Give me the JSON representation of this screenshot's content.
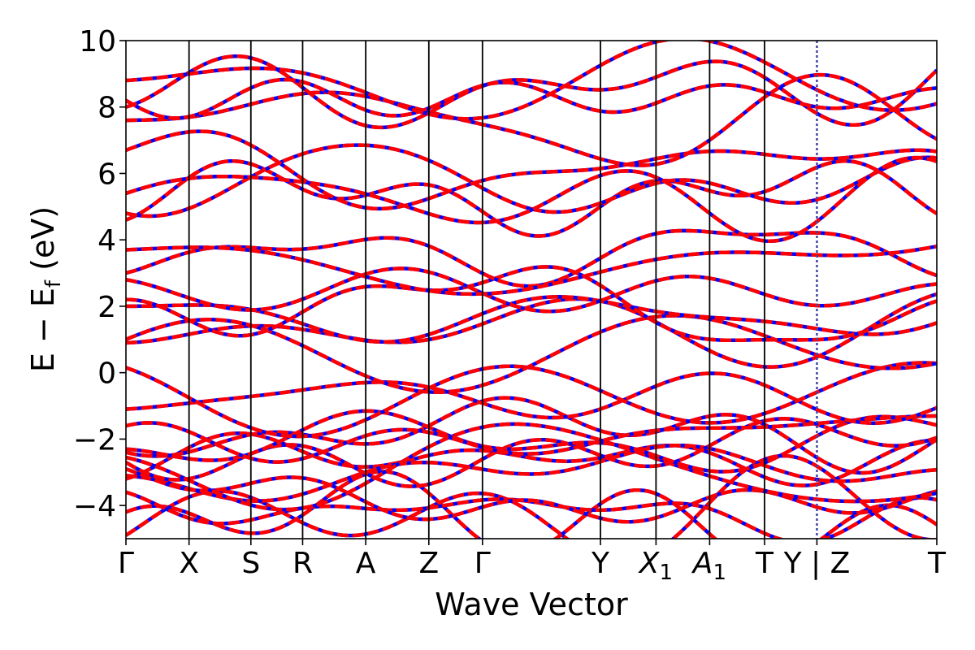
{
  "chart_data": {
    "type": "line",
    "xlabel": "Wave Vector",
    "ylabel": "E − E",
    "ylabel_subscript": "f",
    "ylabel_unit": "(eV)",
    "ylim": [
      -5,
      10
    ],
    "xlim": [
      0,
      12.85
    ],
    "grid": false,
    "legend": "none",
    "y_ticks": [
      -4,
      -2,
      0,
      2,
      4,
      6,
      8,
      10
    ],
    "y_tick_labels": [
      "−4",
      "−2",
      "0",
      "2",
      "4",
      "6",
      "8",
      "10"
    ],
    "high_symmetry_points": [
      {
        "label": "Γ",
        "x": 0
      },
      {
        "label": "X",
        "x": 1.0
      },
      {
        "label": "S",
        "x": 1.98
      },
      {
        "label": "R",
        "x": 2.8
      },
      {
        "label": "A",
        "x": 3.8
      },
      {
        "label": "Z",
        "x": 4.8
      },
      {
        "label": "Γ",
        "x": 5.65
      },
      {
        "label": "Y",
        "x": 7.52
      },
      {
        "label": "X",
        "sub": "1",
        "italic": true,
        "x": 8.4
      },
      {
        "label": "A",
        "sub": "1",
        "italic": true,
        "x": 9.25
      },
      {
        "label": "T",
        "x": 10.12
      },
      {
        "label": "Y | Z",
        "x": 10.95
      },
      {
        "label": "T",
        "x": 12.85
      }
    ],
    "dashed_boundary_x": 10.95,
    "series_style": {
      "calc_a": {
        "color": "#0000ff",
        "width": 4.5
      },
      "calc_b": {
        "color": "#ff0000",
        "width": 4.5,
        "dashed": true
      }
    },
    "band_energies_at_gamma": [
      -4.9,
      -4.2,
      -3.6,
      -3.2,
      -3.1,
      -2.9,
      -2.7,
      -2.55,
      -2.4,
      -2.3,
      -1.6,
      -1.1,
      0.15,
      0.9,
      1.0,
      2.0,
      2.2,
      2.8,
      3.0,
      3.7,
      4.6,
      4.8,
      5.4,
      6.7,
      7.6,
      8.0,
      8.2,
      8.8
    ]
  }
}
